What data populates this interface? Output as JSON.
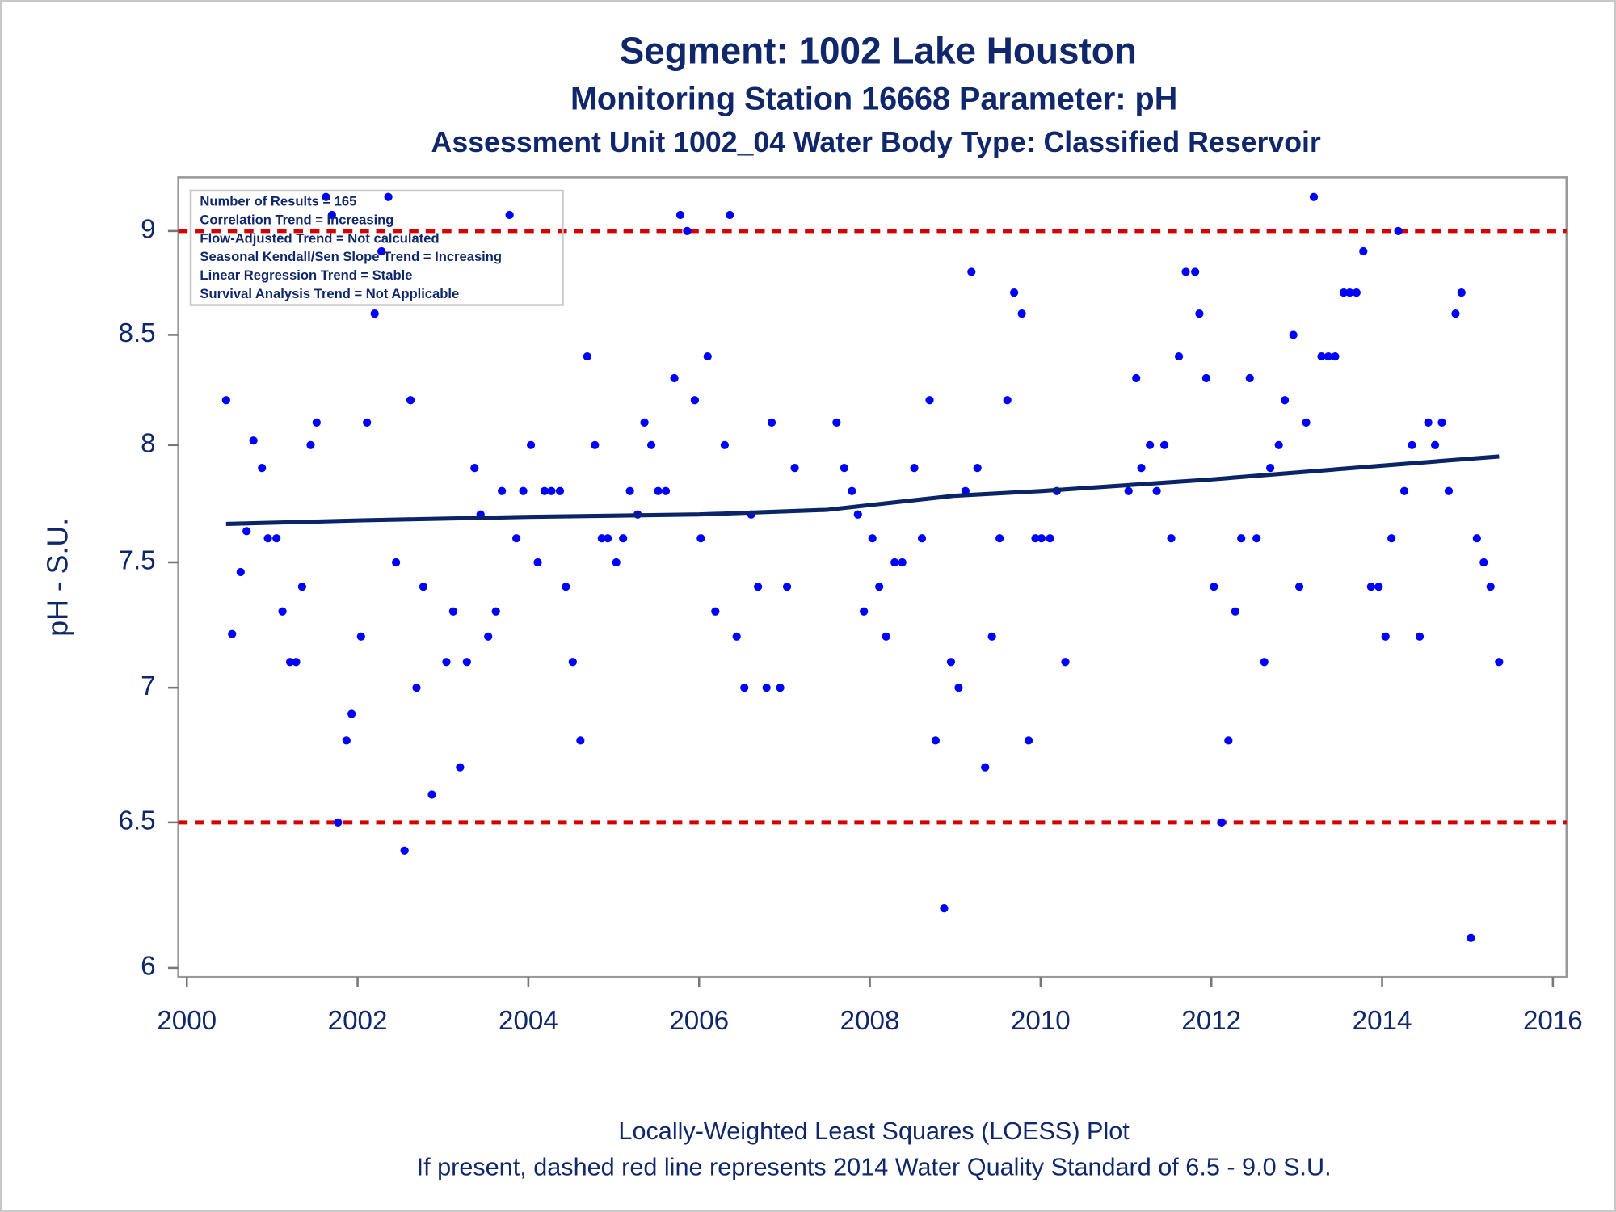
{
  "chart_data": {
    "type": "scatter",
    "title": "Segment: 1002  Lake Houston",
    "subtitle": "Monitoring Station 16668 Parameter: pH",
    "subtitle2": "Assessment Unit 1002_04   Water Body Type: Classified Reservoir",
    "ylabel": "pH - S.U.",
    "footnotes": [
      "Locally-Weighted Least Squares (LOESS) Plot",
      "If present, dashed red line represents 2014 Water Quality Standard of 6.5 - 9.0 S.U."
    ],
    "annotations": [
      "Number of Results = 165",
      "Correlation Trend = Increasing",
      "Flow-Adjusted Trend = Not calculated",
      "Seasonal Kendall/Sen Slope Trend = Increasing",
      "Linear Regression Trend = Stable",
      "Survival Analysis Trend = Not Applicable"
    ],
    "color": "#0000ff",
    "x": [
      2000.46,
      2000.53,
      2000.63,
      2000.7,
      2000.78,
      2000.88,
      2000.95,
      2001.05,
      2001.12,
      2001.21,
      2001.28,
      2001.35,
      2001.45,
      2001.52,
      2001.63,
      2001.7,
      2001.77,
      2001.87,
      2001.93,
      2002.04,
      2002.11,
      2002.2,
      2002.28,
      2002.36,
      2002.45,
      2002.55,
      2002.62,
      2002.69,
      2002.77,
      2002.87,
      2003.04,
      2003.12,
      2003.2,
      2003.28,
      2003.37,
      2003.44,
      2003.53,
      2003.62,
      2003.69,
      2003.78,
      2003.86,
      2003.94,
      2004.03,
      2004.11,
      2004.19,
      2004.27,
      2004.37,
      2004.44,
      2004.52,
      2004.61,
      2004.69,
      2004.78,
      2004.86,
      2004.93,
      2005.03,
      2005.11,
      2005.19,
      2005.28,
      2005.36,
      2005.44,
      2005.52,
      2005.61,
      2005.71,
      2005.78,
      2005.86,
      2005.95,
      2006.02,
      2006.1,
      2006.19,
      2006.3,
      2006.36,
      2006.44,
      2006.53,
      2006.61,
      2006.69,
      2006.79,
      2006.85,
      2006.95,
      2007.03,
      2007.12,
      2007.61,
      2007.7,
      2007.79,
      2007.86,
      2007.93,
      2008.03,
      2008.11,
      2008.19,
      2008.29,
      2008.38,
      2008.52,
      2008.61,
      2008.7,
      2008.77,
      2008.87,
      2008.95,
      2009.04,
      2009.12,
      2009.19,
      2009.26,
      2009.35,
      2009.43,
      2009.52,
      2009.61,
      2009.69,
      2009.78,
      2009.86,
      2009.94,
      2010.01,
      2010.11,
      2010.19,
      2010.29,
      2011.03,
      2011.12,
      2011.18,
      2011.28,
      2011.36,
      2011.45,
      2011.53,
      2011.62,
      2011.7,
      2011.81,
      2011.86,
      2011.94,
      2012.03,
      2012.12,
      2012.2,
      2012.28,
      2012.35,
      2012.45,
      2012.53,
      2012.62,
      2012.69,
      2012.79,
      2012.86,
      2012.96,
      2013.03,
      2013.11,
      2013.2,
      2013.29,
      2013.37,
      2013.45,
      2013.55,
      2013.62,
      2013.7,
      2013.78,
      2013.87,
      2013.96,
      2014.04,
      2014.11,
      2014.19,
      2014.26,
      2014.35,
      2014.44,
      2014.54,
      2014.62,
      2014.7,
      2014.78,
      2014.86,
      2014.93,
      2015.04,
      2015.11,
      2015.19,
      2015.27,
      2015.37
    ],
    "values": [
      8.2,
      7.21,
      7.46,
      7.63,
      8.02,
      7.9,
      7.6,
      7.6,
      7.3,
      7.1,
      7.1,
      7.4,
      8.0,
      8.1,
      9.17,
      9.08,
      6.5,
      6.8,
      6.9,
      7.2,
      8.1,
      8.6,
      8.9,
      9.17,
      7.5,
      6.4,
      8.2,
      7.0,
      7.4,
      6.6,
      7.1,
      7.3,
      6.7,
      7.1,
      7.9,
      7.7,
      7.2,
      7.3,
      7.8,
      9.08,
      7.6,
      7.8,
      8.0,
      7.5,
      7.8,
      7.8,
      7.8,
      7.4,
      7.1,
      6.8,
      8.4,
      8.0,
      7.6,
      7.6,
      7.5,
      7.6,
      7.8,
      7.7,
      8.1,
      8.0,
      7.8,
      7.8,
      8.3,
      9.08,
      9.0,
      8.2,
      7.6,
      8.4,
      7.3,
      8.0,
      9.08,
      7.2,
      7.0,
      7.7,
      7.4,
      7.0,
      8.1,
      7.0,
      7.4,
      7.9,
      8.1,
      7.9,
      7.8,
      7.7,
      7.3,
      7.6,
      7.4,
      7.2,
      7.5,
      7.5,
      7.9,
      7.6,
      8.2,
      6.8,
      6.2,
      7.1,
      7.0,
      7.8,
      8.8,
      7.9,
      6.7,
      7.2,
      7.6,
      8.2,
      8.7,
      8.6,
      6.8,
      7.6,
      7.6,
      7.6,
      7.8,
      7.1,
      7.8,
      8.3,
      7.9,
      8.0,
      7.8,
      8.0,
      7.6,
      8.4,
      8.8,
      8.8,
      8.6,
      8.3,
      7.4,
      6.5,
      6.8,
      7.3,
      7.6,
      8.3,
      7.6,
      7.1,
      7.9,
      8.0,
      8.2,
      8.5,
      7.4,
      8.1,
      9.17,
      8.4,
      8.4,
      8.4,
      8.7,
      8.7,
      8.7,
      8.9,
      7.4,
      7.4,
      7.2,
      7.6,
      9.0,
      7.8,
      8.0,
      7.2,
      8.1,
      8.0,
      8.1,
      7.8,
      8.6,
      8.7,
      6.1,
      7.6,
      7.5,
      7.4,
      7.1
    ],
    "loess": {
      "color": "#0a2467",
      "x": [
        2000.46,
        2002,
        2004,
        2006,
        2007.5,
        2008,
        2009,
        2010,
        2012,
        2014,
        2015.37
      ],
      "values": [
        7.66,
        7.675,
        7.69,
        7.7,
        7.72,
        7.74,
        7.78,
        7.8,
        7.85,
        7.91,
        7.95
      ]
    },
    "reference_lines": [
      6.5,
      9
    ],
    "reference_color": "#d40000",
    "xlim": [
      1999.9,
      2016.16
    ],
    "xticks": [
      2000,
      2002,
      2004,
      2006,
      2008,
      2010,
      2012,
      2014,
      2016
    ],
    "ylim": [
      5.97,
      9.27
    ],
    "yticks": [
      6,
      6.5,
      7,
      7.5,
      8,
      8.5,
      9
    ],
    "ylog": true
  }
}
